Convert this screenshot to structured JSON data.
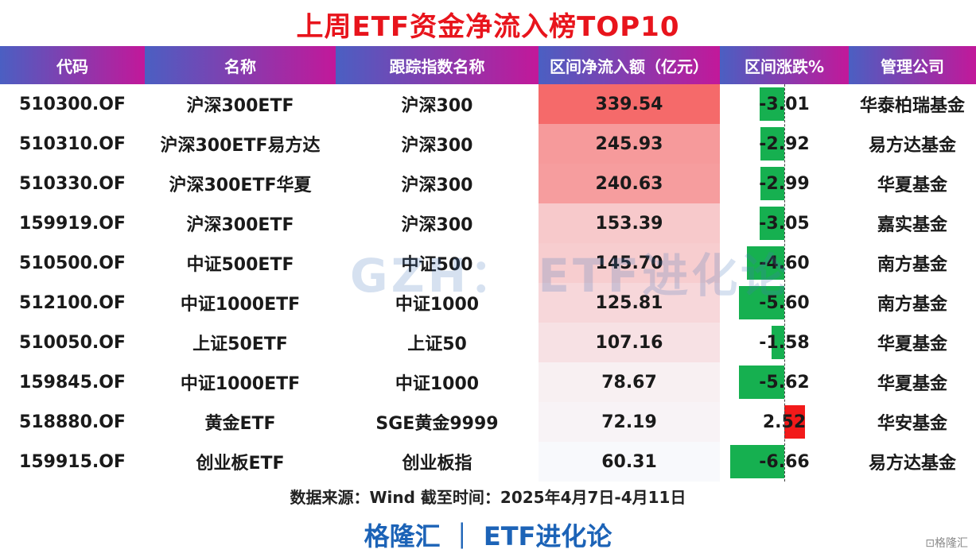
{
  "title": "上周ETF资金净流入榜TOP10",
  "headers": [
    "代码",
    "名称",
    "跟踪指数名称",
    "区间净流入额（亿元）",
    "区间涨跌%",
    "管理公司"
  ],
  "rows": [
    {
      "code": "510300.OF",
      "name": "沪深300ETF",
      "index": "沪深300",
      "inflow": "339.54",
      "change": "-3.01",
      "company": "华泰柏瑞基金"
    },
    {
      "code": "510310.OF",
      "name": "沪深300ETF易方达",
      "index": "沪深300",
      "inflow": "245.93",
      "change": "-2.92",
      "company": "易方达基金"
    },
    {
      "code": "510330.OF",
      "name": "沪深300ETF华夏",
      "index": "沪深300",
      "inflow": "240.63",
      "change": "-2.99",
      "company": "华夏基金"
    },
    {
      "code": "159919.OF",
      "name": "沪深300ETF",
      "index": "沪深300",
      "inflow": "153.39",
      "change": "-3.05",
      "company": "嘉实基金"
    },
    {
      "code": "510500.OF",
      "name": "中证500ETF",
      "index": "中证500",
      "inflow": "145.70",
      "change": "-4.60",
      "company": "南方基金"
    },
    {
      "code": "512100.OF",
      "name": "中证1000ETF",
      "index": "中证1000",
      "inflow": "125.81",
      "change": "-5.60",
      "company": "南方基金"
    },
    {
      "code": "510050.OF",
      "name": "上证50ETF",
      "index": "上证50",
      "inflow": "107.16",
      "change": "-1.58",
      "company": "华夏基金"
    },
    {
      "code": "159845.OF",
      "name": "中证1000ETF",
      "index": "中证1000",
      "inflow": "78.67",
      "change": "-5.62",
      "company": "华夏基金"
    },
    {
      "code": "518880.OF",
      "name": "黄金ETF",
      "index": "SGE黄金9999",
      "inflow": "72.19",
      "change": "2.52",
      "company": "华安基金"
    },
    {
      "code": "159915.OF",
      "name": "创业板ETF",
      "index": "创业板指",
      "inflow": "60.31",
      "change": "-6.66",
      "company": "易方达基金"
    }
  ],
  "source": "数据来源：Wind 截至时间：2025年4月7日-4月11日",
  "brand": "格隆汇 ｜ ETF进化论",
  "watermark": "GZH： ETF进化论",
  "corner_logo": "⊡格隆汇",
  "colors": {
    "title": "#e8141c",
    "header_start": "#4b5fc2",
    "header_end": "#c2189a",
    "inflow_max": "#f56a6a",
    "negative_bar": "#16b050",
    "positive_bar": "#f21a1a",
    "brand": "#1c63b7"
  },
  "chart_data": {
    "type": "table",
    "title": "上周ETF资金净流入榜TOP10",
    "columns": [
      "代码",
      "名称",
      "跟踪指数名称",
      "区间净流入额（亿元）",
      "区间涨跌%",
      "管理公司"
    ],
    "inflow_values": [
      339.54,
      245.93,
      240.63,
      153.39,
      145.7,
      125.81,
      107.16,
      78.67,
      72.19,
      60.31
    ],
    "change_values": [
      -3.01,
      -2.92,
      -2.99,
      -3.05,
      -4.6,
      -5.6,
      -1.58,
      -5.62,
      2.52,
      -6.66
    ]
  }
}
